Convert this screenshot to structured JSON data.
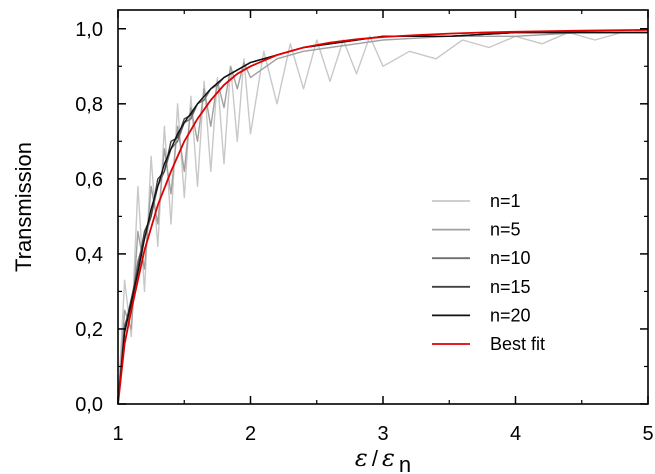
{
  "chart_data": {
    "type": "line",
    "xlabel": {
      "main": "ε",
      "slash": "/",
      "denom": "ε",
      "sub": "n"
    },
    "ylabel": "Transmission",
    "xlim": [
      1,
      5
    ],
    "ylim": [
      0,
      1.05
    ],
    "x_ticks": [
      {
        "value": 1,
        "label": "1"
      },
      {
        "value": 2,
        "label": "2"
      },
      {
        "value": 3,
        "label": "3"
      },
      {
        "value": 4,
        "label": "4"
      },
      {
        "value": 5,
        "label": "5"
      }
    ],
    "y_ticks": [
      {
        "value": 0.0,
        "label": "0,0"
      },
      {
        "value": 0.2,
        "label": "0,2"
      },
      {
        "value": 0.4,
        "label": "0,4"
      },
      {
        "value": 0.6,
        "label": "0,6"
      },
      {
        "value": 0.8,
        "label": "0,8"
      },
      {
        "value": 1.0,
        "label": "1,0"
      }
    ],
    "grid": false,
    "legend_position": "center-right",
    "series": [
      {
        "name": "n=1",
        "color": "#c8c8c8",
        "x": [
          1.0,
          1.05,
          1.1,
          1.15,
          1.2,
          1.25,
          1.3,
          1.35,
          1.4,
          1.45,
          1.5,
          1.55,
          1.6,
          1.65,
          1.7,
          1.75,
          1.8,
          1.85,
          1.9,
          1.95,
          2.0,
          2.1,
          2.2,
          2.3,
          2.4,
          2.5,
          2.6,
          2.7,
          2.8,
          2.9,
          3.0,
          3.2,
          3.4,
          3.6,
          3.8,
          4.0,
          4.2,
          4.4,
          4.6,
          4.8,
          5.0
        ],
        "y": [
          0.0,
          0.33,
          0.18,
          0.58,
          0.3,
          0.66,
          0.42,
          0.74,
          0.48,
          0.8,
          0.55,
          0.82,
          0.58,
          0.86,
          0.62,
          0.87,
          0.64,
          0.9,
          0.7,
          0.92,
          0.72,
          0.94,
          0.8,
          0.96,
          0.84,
          0.97,
          0.86,
          0.97,
          0.88,
          0.98,
          0.9,
          0.94,
          0.92,
          0.97,
          0.95,
          0.98,
          0.96,
          0.99,
          0.97,
          0.99,
          0.99
        ]
      },
      {
        "name": "n=5",
        "color": "#a0a0a0",
        "x": [
          1.0,
          1.05,
          1.1,
          1.15,
          1.2,
          1.25,
          1.3,
          1.35,
          1.4,
          1.45,
          1.5,
          1.55,
          1.6,
          1.65,
          1.7,
          1.75,
          1.8,
          1.85,
          1.9,
          1.95,
          2.0,
          2.2,
          2.4,
          2.6,
          2.8,
          3.0,
          3.5,
          4.0,
          4.5,
          5.0
        ],
        "y": [
          0.0,
          0.25,
          0.2,
          0.46,
          0.36,
          0.58,
          0.48,
          0.68,
          0.56,
          0.74,
          0.62,
          0.79,
          0.7,
          0.84,
          0.74,
          0.86,
          0.79,
          0.9,
          0.84,
          0.91,
          0.87,
          0.92,
          0.94,
          0.95,
          0.96,
          0.97,
          0.98,
          0.98,
          0.99,
          0.99
        ]
      },
      {
        "name": "n=10",
        "color": "#6e6e6e",
        "x": [
          1.0,
          1.05,
          1.1,
          1.15,
          1.2,
          1.25,
          1.3,
          1.35,
          1.4,
          1.45,
          1.5,
          1.55,
          1.6,
          1.65,
          1.7,
          1.75,
          1.8,
          1.9,
          2.0,
          2.2,
          2.4,
          2.6,
          2.8,
          3.0,
          3.5,
          4.0,
          4.5,
          5.0
        ],
        "y": [
          0.0,
          0.21,
          0.26,
          0.38,
          0.44,
          0.5,
          0.58,
          0.62,
          0.68,
          0.7,
          0.75,
          0.76,
          0.8,
          0.81,
          0.84,
          0.85,
          0.87,
          0.89,
          0.91,
          0.93,
          0.95,
          0.96,
          0.97,
          0.98,
          0.98,
          0.99,
          0.99,
          0.99
        ]
      },
      {
        "name": "n=15",
        "color": "#404040",
        "x": [
          1.0,
          1.05,
          1.1,
          1.15,
          1.2,
          1.25,
          1.3,
          1.35,
          1.4,
          1.45,
          1.5,
          1.55,
          1.6,
          1.7,
          1.8,
          1.9,
          2.0,
          2.2,
          2.4,
          2.6,
          2.8,
          3.0,
          3.5,
          4.0,
          4.5,
          5.0
        ],
        "y": [
          0.0,
          0.2,
          0.28,
          0.36,
          0.46,
          0.5,
          0.6,
          0.62,
          0.7,
          0.71,
          0.76,
          0.77,
          0.8,
          0.84,
          0.87,
          0.89,
          0.91,
          0.93,
          0.95,
          0.96,
          0.97,
          0.98,
          0.98,
          0.99,
          0.99,
          0.99
        ]
      },
      {
        "name": "n=20",
        "color": "#111111",
        "x": [
          1.0,
          1.05,
          1.1,
          1.15,
          1.2,
          1.25,
          1.3,
          1.35,
          1.4,
          1.45,
          1.5,
          1.6,
          1.7,
          1.8,
          1.9,
          2.0,
          2.2,
          2.4,
          2.6,
          2.8,
          3.0,
          3.5,
          4.0,
          4.5,
          5.0
        ],
        "y": [
          0.0,
          0.19,
          0.27,
          0.35,
          0.44,
          0.52,
          0.58,
          0.64,
          0.68,
          0.72,
          0.75,
          0.8,
          0.84,
          0.87,
          0.89,
          0.91,
          0.93,
          0.95,
          0.96,
          0.97,
          0.98,
          0.98,
          0.99,
          0.99,
          0.99
        ]
      },
      {
        "name": "Best fit",
        "color": "#e00000",
        "x": [
          1.0,
          1.05,
          1.1,
          1.15,
          1.2,
          1.3,
          1.4,
          1.5,
          1.6,
          1.7,
          1.8,
          1.9,
          2.0,
          2.2,
          2.4,
          2.6,
          2.8,
          3.0,
          3.25,
          3.5,
          3.75,
          4.0,
          4.5,
          5.0
        ],
        "y": [
          0.0,
          0.16,
          0.25,
          0.33,
          0.41,
          0.53,
          0.62,
          0.7,
          0.76,
          0.81,
          0.85,
          0.88,
          0.9,
          0.93,
          0.95,
          0.963,
          0.972,
          0.978,
          0.983,
          0.987,
          0.99,
          0.992,
          0.995,
          0.997
        ]
      }
    ]
  }
}
